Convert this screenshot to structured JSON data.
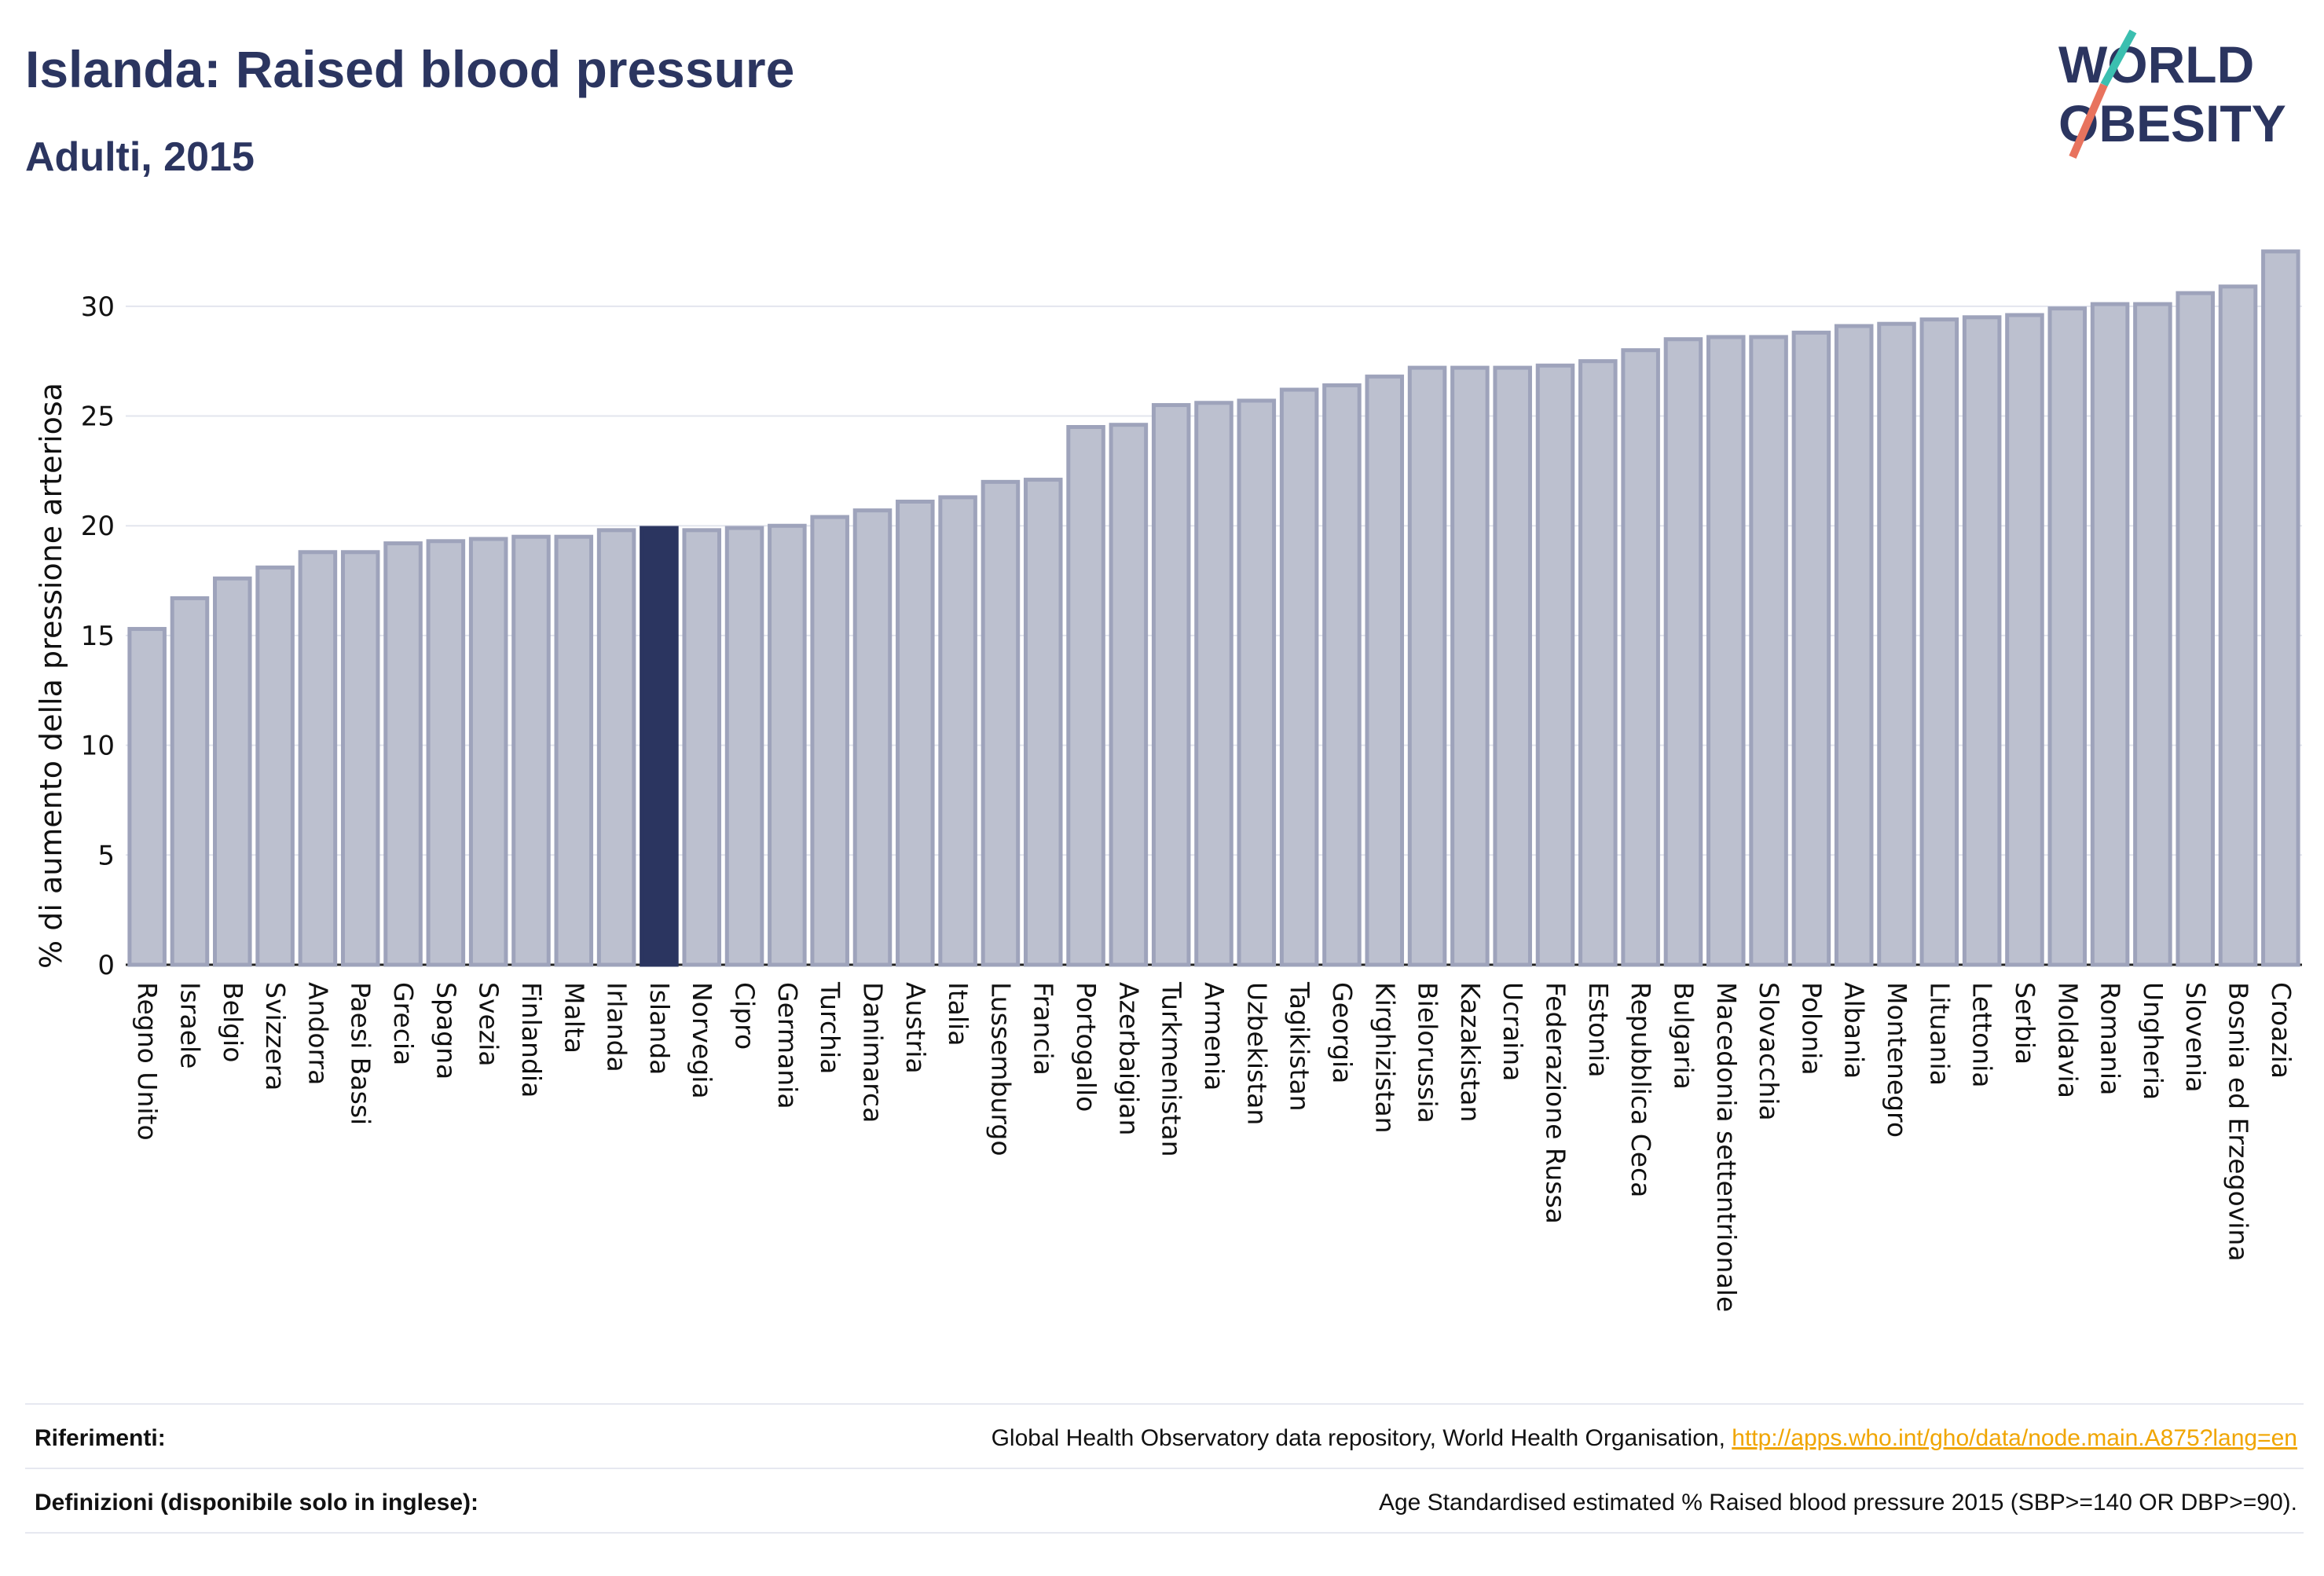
{
  "title": "Islanda: Raised blood pressure",
  "subtitle": "Adulti, 2015",
  "logo": {
    "line1": "WORLD",
    "line2": "OBESITY"
  },
  "colors": {
    "bar": "#bcc0cf",
    "bar_stroke": "#9ea3bb",
    "highlight": "#2b3560",
    "grid": "#e3e5ee",
    "title": "#2b3560",
    "link": "#f0a500"
  },
  "chart_data": {
    "type": "bar",
    "ylabel": "% di aumento della pressione arteriosa",
    "ylim": [
      0,
      32.5
    ],
    "yticks": [
      0,
      5,
      10,
      15,
      20,
      25,
      30
    ],
    "grid": true,
    "highlight": "Islanda",
    "categories": [
      "Regno Unito",
      "Israele",
      "Belgio",
      "Svizzera",
      "Andorra",
      "Paesi Bassi",
      "Grecia",
      "Spagna",
      "Svezia",
      "Finlandia",
      "Malta",
      "Irlanda",
      "Islanda",
      "Norvegia",
      "Cipro",
      "Germania",
      "Turchia",
      "Danimarca",
      "Austria",
      "Italia",
      "Lussemburgo",
      "Francia",
      "Portogallo",
      "Azerbaigian",
      "Turkmenistan",
      "Armenia",
      "Uzbekistan",
      "Tagikistan",
      "Georgia",
      "Kirghizistan",
      "Bielorussia",
      "Kazakistan",
      "Ucraina",
      "Federazione Russa",
      "Estonia",
      "Repubblica Ceca",
      "Bulgaria",
      "Macedonia settentrionale",
      "Slovacchia",
      "Polonia",
      "Albania",
      "Montenegro",
      "Lituania",
      "Lettonia",
      "Serbia",
      "Moldavia",
      "Romania",
      "Ungheria",
      "Slovenia",
      "Bosnia ed Erzegovina",
      "Croazia"
    ],
    "values": [
      15.3,
      16.7,
      17.6,
      18.1,
      18.8,
      18.8,
      19.2,
      19.3,
      19.4,
      19.5,
      19.5,
      19.8,
      19.9,
      19.8,
      19.9,
      20.0,
      20.4,
      20.7,
      21.1,
      21.3,
      22.0,
      22.1,
      24.5,
      24.6,
      25.5,
      25.6,
      25.7,
      26.2,
      26.4,
      26.8,
      27.2,
      27.2,
      27.2,
      27.3,
      27.5,
      28.0,
      28.5,
      28.6,
      28.6,
      28.8,
      29.1,
      29.2,
      29.4,
      29.5,
      29.6,
      29.9,
      30.1,
      30.1,
      30.6,
      30.9,
      32.5
    ]
  },
  "footer": {
    "references_label": "Riferimenti:",
    "references_text": "Global Health Observatory data repository, World Health Organisation, ",
    "references_link": "http://apps.who.int/gho/data/node.main.A875?lang=en",
    "definitions_label": "Definizioni (disponibile solo in inglese):",
    "definitions_text": "Age Standardised estimated % Raised blood pressure 2015 (SBP>=140 OR DBP>=90)."
  }
}
